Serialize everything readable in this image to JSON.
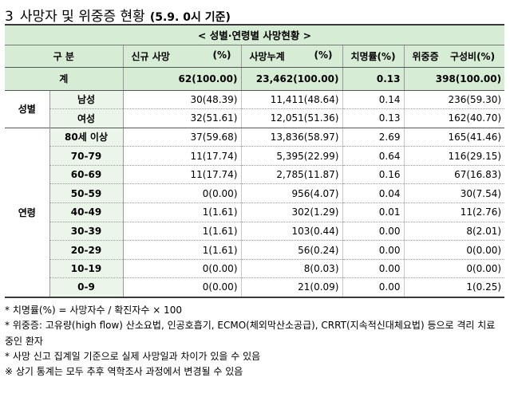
{
  "heading": {
    "number": "3",
    "title": "사망자 및 위중증 현황",
    "date": "(5.9. 0시 기준)"
  },
  "table": {
    "caption": "< 성별·연령별 사망현황 >",
    "headers": {
      "category": "구 분",
      "new_deaths": "신규 사망",
      "new_deaths_pct": "(%)",
      "cum_deaths": "사망누계",
      "cum_deaths_pct": "(%)",
      "fatality": "치명률(%)",
      "critical": "위중증",
      "critical_ratio": "구성비(%)"
    },
    "total": {
      "label": "계",
      "new": "62(100.00)",
      "cum": "23,462(100.00)",
      "fatality": "0.13",
      "critical": "398(100.00)"
    },
    "sex_label": "성별",
    "sex_rows": [
      {
        "label": "남성",
        "new": "30(48.39)",
        "cum": "11,411(48.64)",
        "fatality": "0.14",
        "critical": "236(59.30)"
      },
      {
        "label": "여성",
        "new": "32(51.61)",
        "cum": "12,051(51.36)",
        "fatality": "0.13",
        "critical": "162(40.70)"
      }
    ],
    "age_label": "연령",
    "age_rows": [
      {
        "label": "80세 이상",
        "new": "37(59.68)",
        "cum": "13,836(58.97)",
        "fatality": "2.69",
        "critical": "165(41.46)"
      },
      {
        "label": "70-79",
        "new": "11(17.74)",
        "cum": "5,395(22.99)",
        "fatality": "0.64",
        "critical": "116(29.15)"
      },
      {
        "label": "60-69",
        "new": "11(17.74)",
        "cum": "2,785(11.87)",
        "fatality": "0.16",
        "critical": "67(16.83)"
      },
      {
        "label": "50-59",
        "new": "0(0.00)",
        "cum": "956(4.07)",
        "fatality": "0.04",
        "critical": "30(7.54)"
      },
      {
        "label": "40-49",
        "new": "1(1.61)",
        "cum": "302(1.29)",
        "fatality": "0.01",
        "critical": "11(2.76)"
      },
      {
        "label": "30-39",
        "new": "1(1.61)",
        "cum": "103(0.44)",
        "fatality": "0.00",
        "critical": "8(2.01)"
      },
      {
        "label": "20-29",
        "new": "1(1.61)",
        "cum": "56(0.24)",
        "fatality": "0.00",
        "critical": "0(0.00)"
      },
      {
        "label": "10-19",
        "new": "0(0.00)",
        "cum": "8(0.03)",
        "fatality": "0.00",
        "critical": "0(0.00)"
      },
      {
        "label": "0-9",
        "new": "0(0.00)",
        "cum": "21(0.09)",
        "fatality": "0.00",
        "critical": "1(0.25)"
      }
    ]
  },
  "notes": [
    "* 치명률(%) = 사망자수 / 확진자수 × 100",
    "* 위중증: 고유량(high flow) 산소요법, 인공호흡기, ECMO(체외막산소공급), CRRT(지속적신대체요법) 등으로 격리 치료 중인 환자",
    "* 사망 신고 집계일 기준으로 실제 사망일과 차이가 있을 수 있음",
    "※ 상기 통계는 모두 추후 역학조사 과정에서 변경될 수 있음"
  ]
}
